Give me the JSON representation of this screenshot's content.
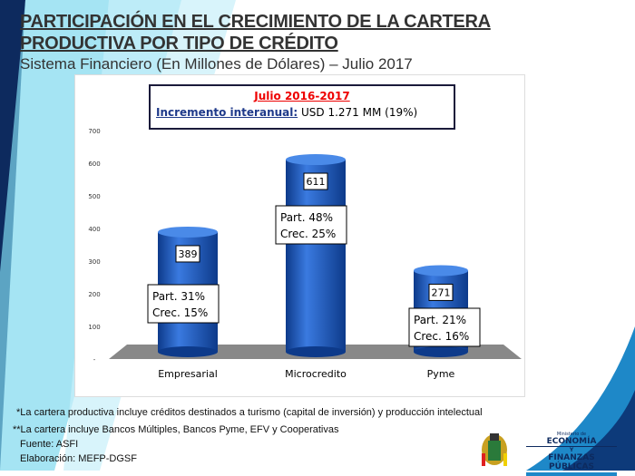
{
  "title_line1": "PARTICIPACIÓN EN EL CRECIMIENTO DE LA CARTERA",
  "title_line2": "PRODUCTIVA POR TIPO DE CRÉDITO",
  "subtitle": "Sistema Financiero (En Millones de Dólares) – Julio 2017",
  "infobox": {
    "period": "Julio 2016-2017",
    "label": "Incremento interanual:",
    "value": "USD 1.271 MM (19%)"
  },
  "notes": {
    "n1": "*La cartera productiva incluye créditos destinados a turismo (capital de inversión) y producción intelectual",
    "n2": "**La cartera incluye Bancos Múltiples, Bancos Pyme, EFV y Cooperativas",
    "source": "Fuente: ASFI",
    "elab": "Elaboración: MEFP-DGSF"
  },
  "logo": {
    "small": "Ministerio de",
    "l1": "ECONOMÍA",
    "l2": "Y",
    "l3": "FINANZAS PÚBLICAS"
  },
  "colors": {
    "bar": "#1f5fc0",
    "title": "#333333",
    "accent": "#e00000"
  },
  "chart_data": {
    "type": "bar",
    "categories": [
      "Empresarial",
      "Microcredito",
      "Pyme"
    ],
    "values": [
      389,
      611,
      271
    ],
    "data_labels": [
      "389",
      "611",
      "271"
    ],
    "annotations": [
      [
        "Part. 31%",
        "Crec. 15%"
      ],
      [
        "Part. 48%",
        "Crec. 25%"
      ],
      [
        "Part. 21%",
        "Crec. 16%"
      ]
    ],
    "yticks": [
      "-",
      "100",
      "200",
      "300",
      "400",
      "500",
      "600",
      "700"
    ],
    "ylim": [
      0,
      700
    ],
    "grid": false,
    "style": "3d-cylinder"
  }
}
